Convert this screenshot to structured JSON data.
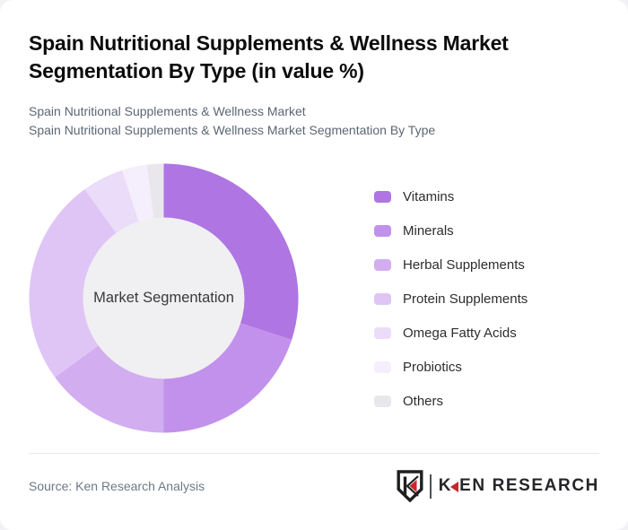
{
  "header": {
    "title_line1": "Spain Nutritional Supplements & Wellness Market",
    "title_line2": "Segmentation By Type (in value %)",
    "subtitle_line1": "Spain Nutritional Supplements & Wellness Market",
    "subtitle_line2": "Spain Nutritional Supplements & Wellness Market Segmentation By Type"
  },
  "chart_data": {
    "type": "pie",
    "variant": "donut",
    "title": "Spain Nutritional Supplements & Wellness Market Segmentation By Type (in value %)",
    "center_label": "Market Segmentation",
    "unit": "value %",
    "start_angle_deg": 0,
    "direction": "clockwise",
    "inner_radius_ratio": 0.6,
    "hole_color": "#f0eff1",
    "legend_position": "right",
    "segments": [
      {
        "label": "Vitamins",
        "value": 30,
        "color": "#ae75e3"
      },
      {
        "label": "Minerals",
        "value": 20,
        "color": "#c291ec"
      },
      {
        "label": "Herbal Supplements",
        "value": 15,
        "color": "#d2adf0"
      },
      {
        "label": "Protein Supplements",
        "value": 25,
        "color": "#dfc5f5"
      },
      {
        "label": "Omega Fatty Acids",
        "value": 5,
        "color": "#ebdcfa"
      },
      {
        "label": "Probiotics",
        "value": 3,
        "color": "#f5eefd"
      },
      {
        "label": "Others",
        "value": 2,
        "color": "#e9e7ec"
      }
    ]
  },
  "footer": {
    "source": "Source: Ken Research Analysis",
    "logo": {
      "brand_k": "K",
      "brand_rest": "EN RESEARCH",
      "accent_color": "#c9252c",
      "text_color": "#26262a"
    }
  }
}
